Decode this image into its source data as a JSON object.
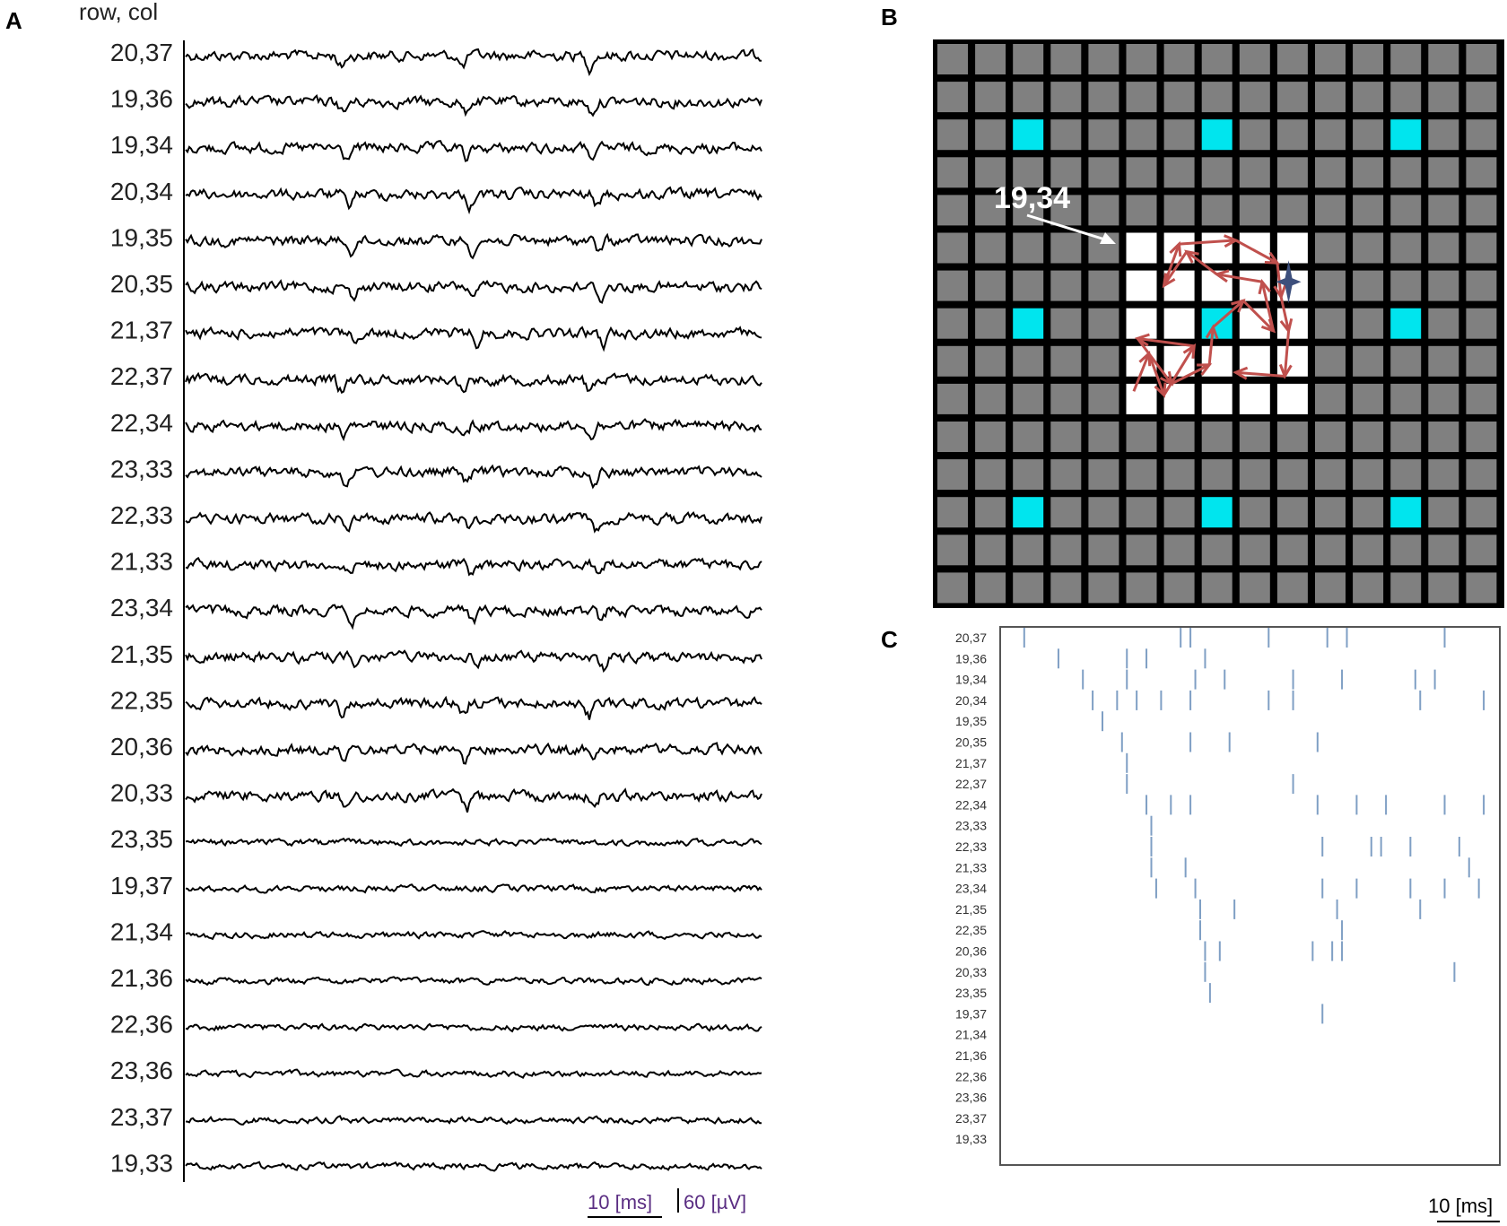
{
  "panels": {
    "a": "A",
    "b": "B",
    "c": "C"
  },
  "panel_a": {
    "header": "row, col",
    "rows": [
      "20,37",
      "19,36",
      "19,34",
      "20,34",
      "19,35",
      "20,35",
      "21,37",
      "22,37",
      "22,34",
      "23,33",
      "22,33",
      "21,33",
      "23,34",
      "21,35",
      "22,35",
      "20,36",
      "20,33",
      "23,35",
      "19,37",
      "21,34",
      "21,36",
      "22,36",
      "23,36",
      "23,37",
      "19,33"
    ],
    "time_scale": "10 [ms]",
    "voltage_scale": "60 [µV]"
  },
  "panel_b": {
    "annotation": "19,34",
    "colors": {
      "background": "#000000",
      "electrode": "#808080",
      "reference": "#00e5ee",
      "active": "#ffffff",
      "path": "#c0504d",
      "marker": "#3d4f7c"
    }
  },
  "panel_c": {
    "rows": [
      "20,37",
      "19,36",
      "19,34",
      "20,34",
      "19,35",
      "20,35",
      "21,37",
      "22,37",
      "22,34",
      "23,33",
      "22,33",
      "21,33",
      "23,34",
      "21,35",
      "22,35",
      "20,36",
      "20,33",
      "23,35",
      "19,37",
      "21,34",
      "21,36",
      "22,36",
      "23,36",
      "23,37",
      "19,33"
    ],
    "time_scale": "10 [ms]",
    "tick_color": "#7f9fc4"
  },
  "chart_data": [
    {
      "type": "line",
      "title": "",
      "description_units": "traces of extracellular voltage per electrode (row, col)",
      "series": [
        {
          "name": "20,37"
        },
        {
          "name": "19,36"
        },
        {
          "name": "19,34"
        },
        {
          "name": "20,34"
        },
        {
          "name": "19,35"
        },
        {
          "name": "20,35"
        },
        {
          "name": "21,37"
        },
        {
          "name": "22,37"
        },
        {
          "name": "22,34"
        },
        {
          "name": "23,33"
        },
        {
          "name": "22,33"
        },
        {
          "name": "21,33"
        },
        {
          "name": "23,34"
        },
        {
          "name": "21,35"
        },
        {
          "name": "22,35"
        },
        {
          "name": "20,36"
        },
        {
          "name": "20,33"
        },
        {
          "name": "23,35"
        },
        {
          "name": "19,37"
        },
        {
          "name": "21,34"
        },
        {
          "name": "21,36"
        },
        {
          "name": "22,36"
        },
        {
          "name": "23,36"
        },
        {
          "name": "23,37"
        },
        {
          "name": "19,33"
        }
      ]
    },
    {
      "type": "heatmap",
      "grid": {
        "rows": 15,
        "cols": 15
      },
      "reference_cells": [
        [
          2,
          2
        ],
        [
          2,
          7
        ],
        [
          2,
          12
        ],
        [
          7,
          2
        ],
        [
          7,
          7
        ],
        [
          7,
          12
        ],
        [
          12,
          2
        ],
        [
          12,
          7
        ],
        [
          12,
          12
        ]
      ],
      "active_cells": [
        [
          5,
          5
        ],
        [
          5,
          6
        ],
        [
          5,
          7
        ],
        [
          5,
          8
        ],
        [
          5,
          9
        ],
        [
          6,
          5
        ],
        [
          6,
          6
        ],
        [
          6,
          7
        ],
        [
          6,
          8
        ],
        [
          6,
          9
        ],
        [
          7,
          5
        ],
        [
          7,
          6
        ],
        [
          7,
          7
        ],
        [
          7,
          8
        ],
        [
          7,
          9
        ],
        [
          8,
          5
        ],
        [
          8,
          6
        ],
        [
          8,
          7
        ],
        [
          8,
          8
        ],
        [
          8,
          9
        ],
        [
          9,
          5
        ],
        [
          9,
          6
        ],
        [
          9,
          7
        ],
        [
          9,
          8
        ],
        [
          9,
          9
        ]
      ],
      "propagation_path": [
        [
          9.2,
          5.2
        ],
        [
          8.2,
          5.6
        ],
        [
          9.3,
          6.0
        ],
        [
          8.0,
          6.8
        ],
        [
          7.8,
          5.3
        ],
        [
          9.0,
          6.2
        ],
        [
          8.5,
          7.2
        ],
        [
          7.5,
          7.3
        ],
        [
          6.8,
          8.1
        ],
        [
          7.6,
          8.9
        ],
        [
          6.3,
          8.6
        ],
        [
          6.1,
          7.4
        ],
        [
          5.5,
          6.6
        ],
        [
          6.4,
          6.0
        ],
        [
          5.3,
          6.4
        ],
        [
          5.2,
          7.9
        ],
        [
          5.8,
          9.0
        ],
        [
          6.7,
          9.1
        ],
        [
          7.6,
          9.3
        ],
        [
          8.8,
          9.2
        ],
        [
          8.7,
          7.9
        ]
      ],
      "marker_cell": [
        6.3,
        9.3
      ]
    },
    {
      "type": "scatter",
      "title": "",
      "xlabel": "",
      "ylabel": "",
      "xlim": [
        0,
        100
      ],
      "series": [
        {
          "name": "20,37",
          "x": [
            4,
            36,
            38,
            54,
            66,
            70,
            90
          ]
        },
        {
          "name": "19,36",
          "x": [
            11,
            25,
            29,
            41
          ]
        },
        {
          "name": "19,34",
          "x": [
            16,
            25,
            39,
            45,
            59,
            69,
            84,
            88
          ]
        },
        {
          "name": "20,34",
          "x": [
            18,
            23,
            27,
            32,
            38,
            54,
            59,
            85,
            98
          ]
        },
        {
          "name": "19,35",
          "x": [
            20
          ]
        },
        {
          "name": "20,35",
          "x": [
            24,
            38,
            46,
            64
          ]
        },
        {
          "name": "21,37",
          "x": [
            25
          ]
        },
        {
          "name": "22,37",
          "x": [
            25,
            59
          ]
        },
        {
          "name": "22,34",
          "x": [
            29,
            34,
            38,
            64,
            72,
            78,
            90,
            98
          ]
        },
        {
          "name": "23,33",
          "x": [
            30
          ]
        },
        {
          "name": "22,33",
          "x": [
            30,
            65,
            75,
            77,
            83,
            93
          ]
        },
        {
          "name": "21,33",
          "x": [
            30,
            37,
            95
          ]
        },
        {
          "name": "23,34",
          "x": [
            31,
            39,
            65,
            72,
            83,
            90,
            97
          ]
        },
        {
          "name": "21,35",
          "x": [
            40,
            47,
            68,
            85
          ]
        },
        {
          "name": "22,35",
          "x": [
            40,
            69
          ]
        },
        {
          "name": "20,36",
          "x": [
            41,
            44,
            63,
            67,
            69
          ]
        },
        {
          "name": "20,33",
          "x": [
            41,
            92
          ]
        },
        {
          "name": "23,35",
          "x": [
            42
          ]
        },
        {
          "name": "19,37",
          "x": [
            65
          ]
        },
        {
          "name": "21,34",
          "x": []
        },
        {
          "name": "21,36",
          "x": []
        },
        {
          "name": "22,36",
          "x": []
        },
        {
          "name": "23,36",
          "x": []
        },
        {
          "name": "23,37",
          "x": []
        },
        {
          "name": "19,33",
          "x": []
        }
      ]
    }
  ]
}
